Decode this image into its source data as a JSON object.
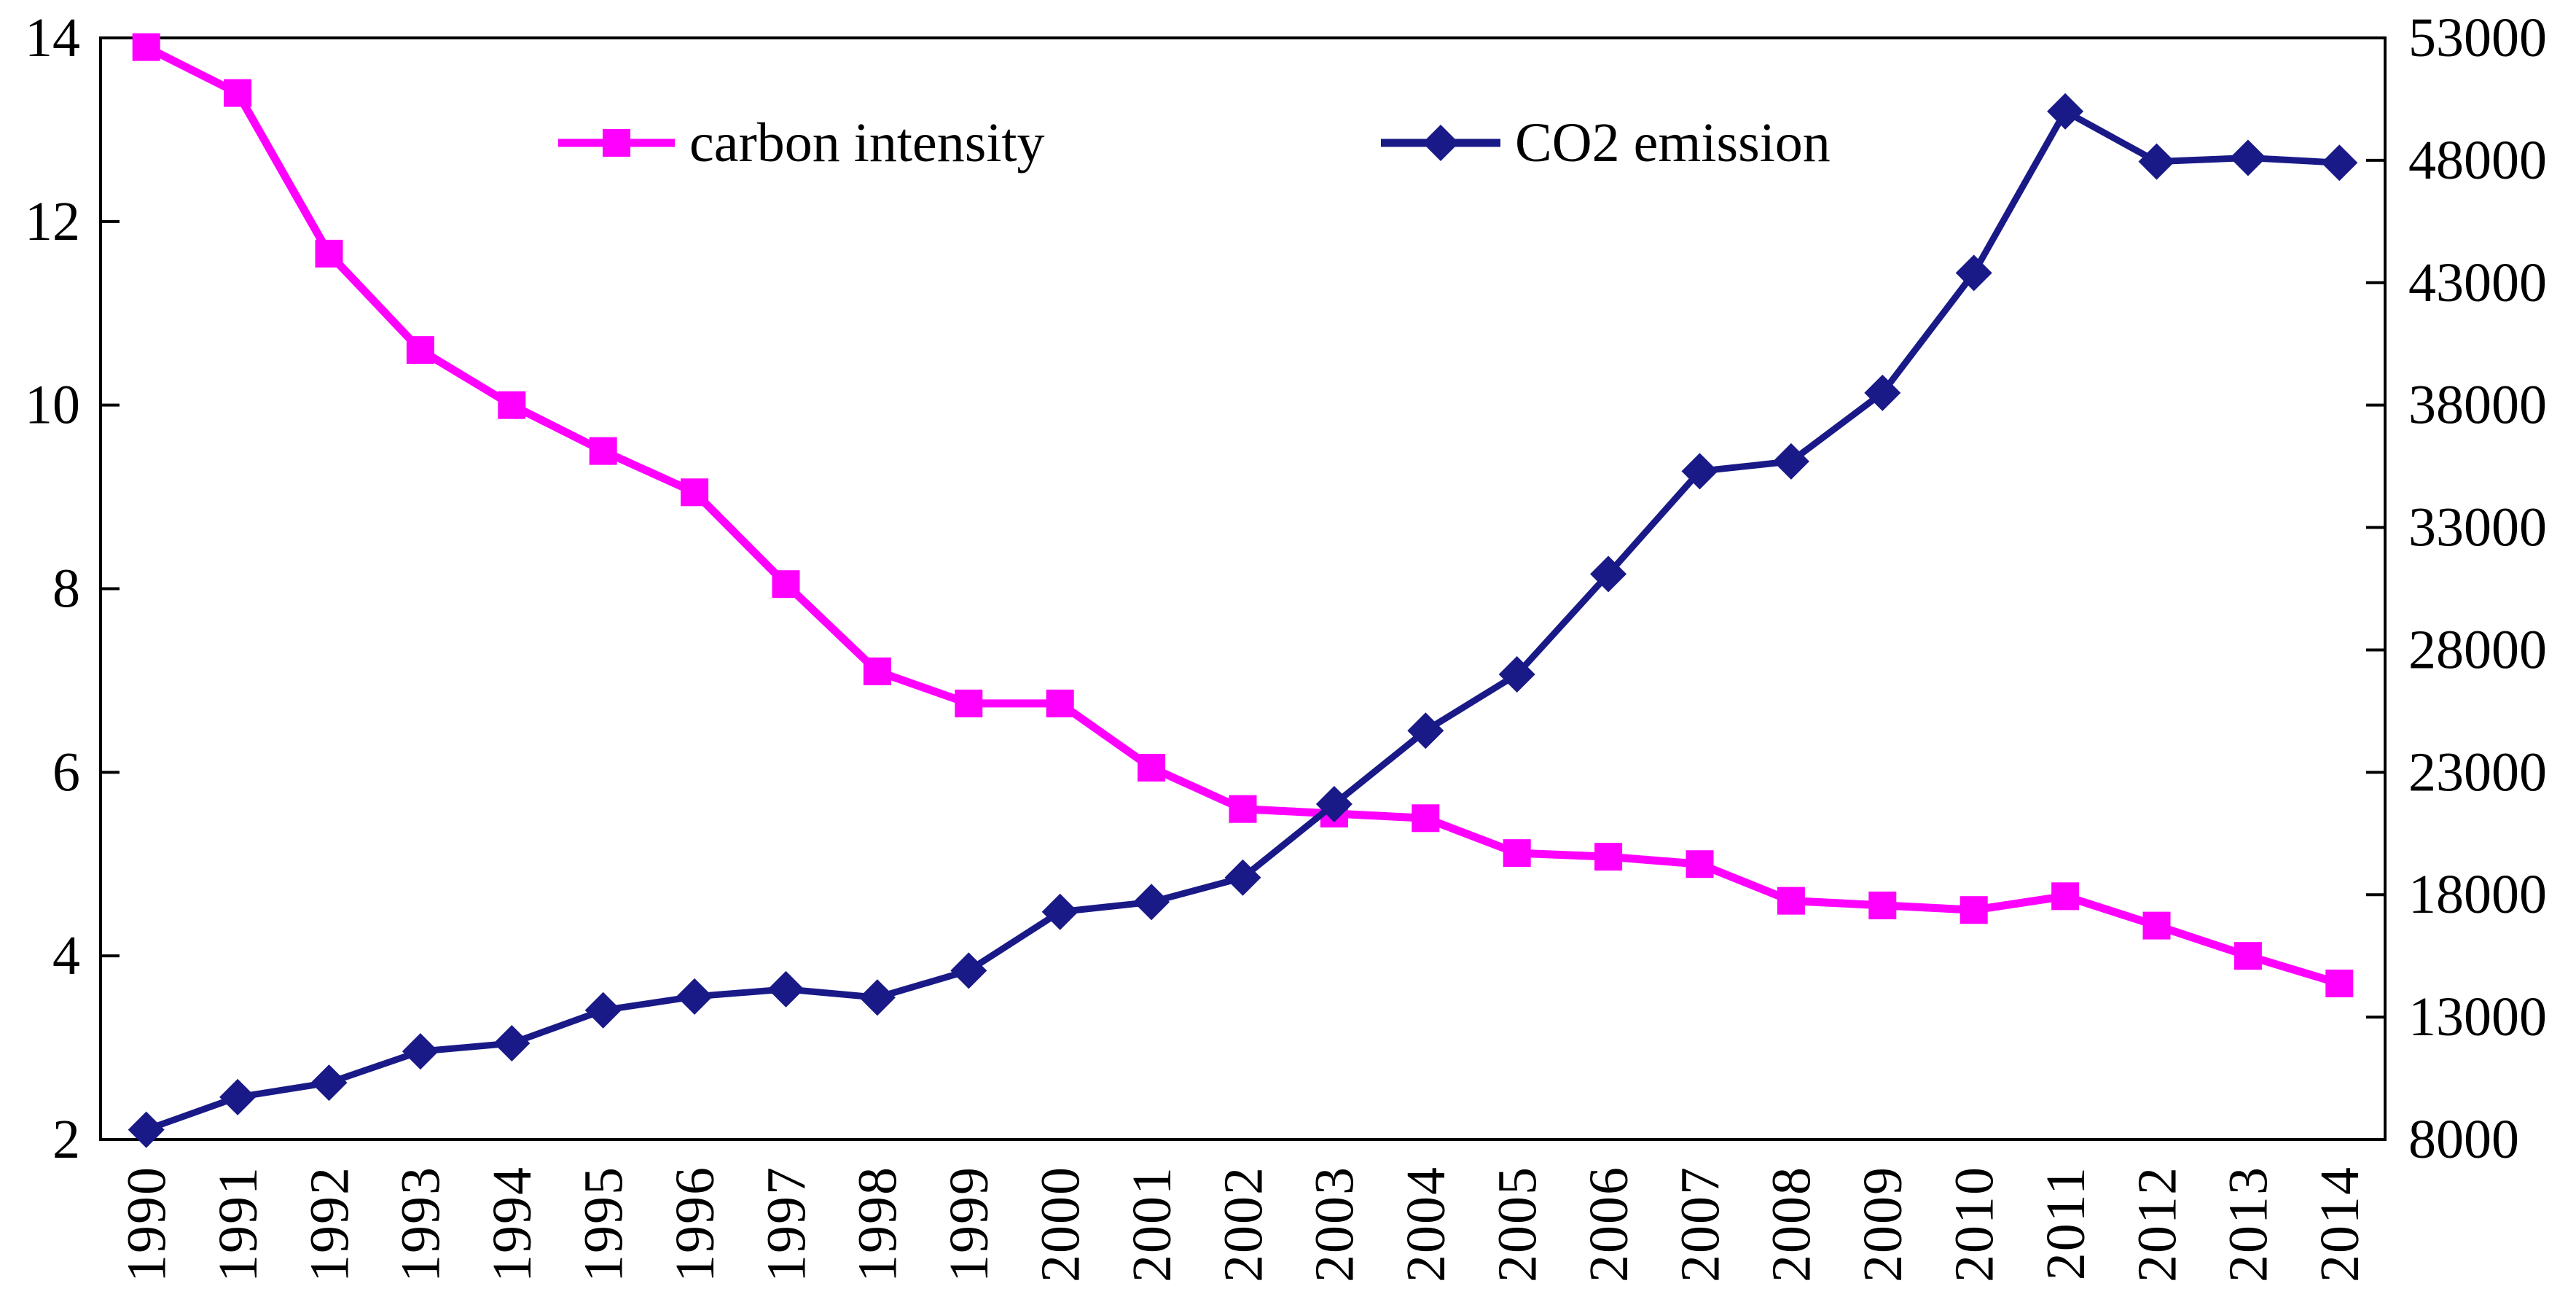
{
  "figure": {
    "background": "#ffffff",
    "axis_color": "#000000",
    "text_color": "#000000"
  },
  "legend": {
    "items": [
      {
        "label": "carbon intensity",
        "marker": "square",
        "color": "#ff00ff"
      },
      {
        "label": "CO2 emission",
        "marker": "diamond",
        "color": "#191987"
      }
    ]
  },
  "chart_data": {
    "type": "line",
    "title": "",
    "xlabel": "",
    "ylabel_left": "",
    "ylabel_right": "",
    "grid": false,
    "legend_position": "top-inside",
    "categories": [
      "1990",
      "1991",
      "1992",
      "1993",
      "1994",
      "1995",
      "1996",
      "1997",
      "1998",
      "1999",
      "2000",
      "2001",
      "2002",
      "2003",
      "2004",
      "2005",
      "2006",
      "2007",
      "2008",
      "2009",
      "2010",
      "2011",
      "2012",
      "2013",
      "2014"
    ],
    "series": [
      {
        "name": "carbon intensity",
        "axis": "left",
        "color": "#ff00ff",
        "marker": "square",
        "line_width": 11,
        "values": [
          13.9,
          13.4,
          11.65,
          10.6,
          10.0,
          9.5,
          9.05,
          8.05,
          7.1,
          6.75,
          6.75,
          6.05,
          5.6,
          5.55,
          5.5,
          5.12,
          5.08,
          5.0,
          4.6,
          4.55,
          4.5,
          4.65,
          4.33,
          4.0,
          3.7
        ]
      },
      {
        "name": "CO2 emission",
        "axis": "right",
        "color": "#191987",
        "marker": "diamond",
        "line_width": 9,
        "values": [
          8400,
          9730,
          10320,
          11600,
          11930,
          13280,
          13840,
          14140,
          13800,
          14900,
          17300,
          17700,
          18700,
          21700,
          24700,
          27000,
          31100,
          35300,
          35700,
          38500,
          43400,
          50000,
          47950,
          48100,
          47900
        ]
      }
    ],
    "axes": {
      "left": {
        "min": 2,
        "max": 14,
        "step": 2,
        "tick_labels": [
          "14",
          "12",
          "10",
          "8",
          "6",
          "4",
          "2"
        ]
      },
      "right": {
        "min": 8000,
        "max": 53000,
        "step": 5000,
        "tick_labels": [
          "53000",
          "48000",
          "43000",
          "38000",
          "33000",
          "28000",
          "23000",
          "18000",
          "13000",
          "8000"
        ]
      },
      "x": {
        "rotation": -90,
        "tick_labels": [
          "1990",
          "1991",
          "1992",
          "1993",
          "1994",
          "1995",
          "1996",
          "1997",
          "1998",
          "1999",
          "2000",
          "2001",
          "2002",
          "2003",
          "2004",
          "2005",
          "2006",
          "2007",
          "2008",
          "2009",
          "2010",
          "2011",
          "2012",
          "2013",
          "2014"
        ]
      }
    }
  }
}
